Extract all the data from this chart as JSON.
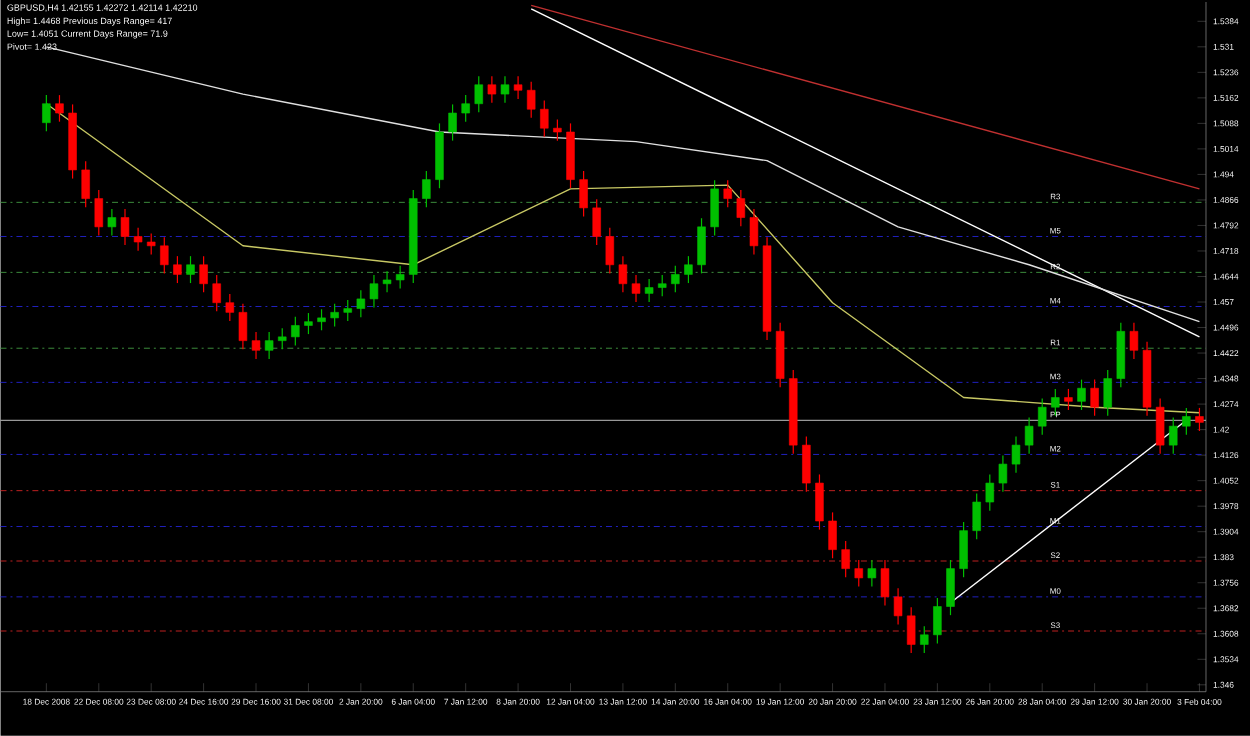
{
  "chart_data": {
    "type": "candlestick",
    "title": "GBPUSD,H4 1.42155 1.42272 1.42114 1.42210",
    "annotations": [
      "High= 1.4468    Previous Days Range= 417",
      "Low= 1.4051    Current Days Range= 71.9",
      "Pivot= 1.423"
    ],
    "colors": [
      "#00c000",
      "#ff0000",
      "#ff0000",
      "#ff0000",
      "#ff0000",
      "#00c000",
      "#ff0000",
      "#ff0000",
      "#ff0000",
      "#ff0000",
      "#ff0000",
      "#00c000",
      "#ff0000",
      "#ff0000",
      "#ff0000",
      "#ff0000",
      "#ff0000",
      "#00c000",
      "#00c000",
      "#00c000",
      "#00c000",
      "#00c000",
      "#00c000",
      "#00c000",
      "#00c000",
      "#00c000",
      "#00c000",
      "#00c000",
      "#00c000",
      "#00c000",
      "#00c000",
      "#00c000",
      "#00c000",
      "#00c000",
      "#ff0000",
      "#00c000",
      "#ff0000",
      "#ff0000",
      "#ff0000",
      "#ff0000",
      "#ff0000",
      "#ff0000",
      "#ff0000",
      "#ff0000",
      "#ff0000",
      "#ff0000",
      "#00c000",
      "#00c000",
      "#00c000",
      "#00c000",
      "#00c000",
      "#00c000",
      "#ff0000",
      "#ff0000",
      "#ff0000",
      "#ff0000",
      "#ff0000",
      "#ff0000",
      "#ff0000",
      "#ff0000",
      "#ff0000",
      "#ff0000",
      "#ff0000",
      "#00c000",
      "#ff0000",
      "#ff0000",
      "#ff0000",
      "#00c000",
      "#00c000",
      "#00c000",
      "#00c000",
      "#00c000",
      "#00c000",
      "#00c000",
      "#00c000",
      "#00c000",
      "#00c000",
      "#00c000",
      "#ff0000",
      "#00c000",
      "#ff0000",
      "#00c000",
      "#00c000",
      "#ff0000",
      "#ff0000",
      "#ff0000",
      "#00c000",
      "#00c000",
      "#ff0000"
    ],
    "categories": [
      "18 Dec 2008",
      null,
      null,
      null,
      "22 Dec 08:00",
      null,
      null,
      null,
      "23 Dec 08:00",
      null,
      null,
      null,
      "24 Dec 16:00",
      null,
      null,
      null,
      "29 Dec 16:00",
      null,
      null,
      null,
      "31 Dec 08:00",
      null,
      null,
      null,
      "2 Jan 20:00",
      null,
      null,
      null,
      "6 Jan 04:00",
      null,
      null,
      null,
      "7 Jan 12:00",
      null,
      null,
      null,
      "8 Jan 20:00",
      null,
      null,
      null,
      "12 Jan 04:00",
      null,
      null,
      null,
      "13 Jan 12:00",
      null,
      null,
      null,
      "14 Jan 20:00",
      null,
      null,
      null,
      "16 Jan 04:00",
      null,
      null,
      null,
      "19 Jan 12:00",
      null,
      null,
      null,
      "20 Jan 20:00",
      null,
      null,
      null,
      "22 Jan 04:00",
      null,
      null,
      null,
      "23 Jan 12:00",
      null,
      null,
      null,
      "26 Jan 20:00",
      null,
      null,
      null,
      "28 Jan 04:00",
      null,
      null,
      null,
      "29 Jan 12:00",
      null,
      null,
      null,
      "30 Jan 20:00",
      null,
      null,
      null,
      "3 Feb 04:00"
    ],
    "ohlc": [
      [
        1.509,
        1.517,
        1.5065,
        1.5145
      ],
      [
        1.5145,
        1.517,
        1.5093,
        1.5118
      ],
      [
        1.5118,
        1.5143,
        1.4928,
        1.4953
      ],
      [
        1.4953,
        1.4978,
        1.4845,
        1.487
      ],
      [
        1.487,
        1.4895,
        1.4763,
        1.4788
      ],
      [
        1.4788,
        1.484,
        1.4763,
        1.4815
      ],
      [
        1.4815,
        1.484,
        1.4735,
        1.476
      ],
      [
        1.476,
        1.4785,
        1.4719,
        1.4744
      ],
      [
        1.4744,
        1.4769,
        1.4708,
        1.4733
      ],
      [
        1.4733,
        1.4758,
        1.4653,
        1.4678
      ],
      [
        1.4678,
        1.4703,
        1.4625,
        1.465
      ],
      [
        1.465,
        1.4703,
        1.4625,
        1.4678
      ],
      [
        1.4678,
        1.4703,
        1.4598,
        1.4623
      ],
      [
        1.4623,
        1.4648,
        1.4543,
        1.4568
      ],
      [
        1.4568,
        1.4593,
        1.4515,
        1.454
      ],
      [
        1.454,
        1.4565,
        1.4433,
        1.4458
      ],
      [
        1.4458,
        1.4483,
        1.4405,
        1.443
      ],
      [
        1.443,
        1.4483,
        1.4405,
        1.4458
      ],
      [
        1.4458,
        1.4494,
        1.4433,
        1.4469
      ],
      [
        1.4469,
        1.4527,
        1.4444,
        1.4502
      ],
      [
        1.4502,
        1.4538,
        1.4477,
        1.4513
      ],
      [
        1.4513,
        1.4549,
        1.4488,
        1.4524
      ],
      [
        1.4524,
        1.4565,
        1.4499,
        1.454
      ],
      [
        1.454,
        1.4576,
        1.4515,
        1.4551
      ],
      [
        1.4551,
        1.4604,
        1.4526,
        1.4579
      ],
      [
        1.4579,
        1.4648,
        1.4554,
        1.4623
      ],
      [
        1.4623,
        1.4659,
        1.4598,
        1.4634
      ],
      [
        1.4634,
        1.4675,
        1.4609,
        1.465
      ],
      [
        1.465,
        1.4895,
        1.4625,
        1.487
      ],
      [
        1.487,
        1.495,
        1.4845,
        1.4925
      ],
      [
        1.4925,
        1.5088,
        1.49,
        1.5063
      ],
      [
        1.5063,
        1.5143,
        1.5038,
        1.5118
      ],
      [
        1.5118,
        1.517,
        1.5093,
        1.5145
      ],
      [
        1.5145,
        1.5225,
        1.512,
        1.52
      ],
      [
        1.52,
        1.5225,
        1.5148,
        1.5173
      ],
      [
        1.5173,
        1.5225,
        1.5148,
        1.52
      ],
      [
        1.52,
        1.5225,
        1.5159,
        1.5184
      ],
      [
        1.5184,
        1.5209,
        1.5104,
        1.5129
      ],
      [
        1.5129,
        1.5154,
        1.5049,
        1.5074
      ],
      [
        1.5074,
        1.5099,
        1.5038,
        1.5063
      ],
      [
        1.5063,
        1.5088,
        1.49,
        1.4925
      ],
      [
        1.4925,
        1.495,
        1.4818,
        1.4843
      ],
      [
        1.4843,
        1.4868,
        1.4735,
        1.476
      ],
      [
        1.476,
        1.4785,
        1.4653,
        1.4678
      ],
      [
        1.4678,
        1.4703,
        1.4598,
        1.4623
      ],
      [
        1.4623,
        1.4648,
        1.457,
        1.4595
      ],
      [
        1.4595,
        1.4637,
        1.457,
        1.4612
      ],
      [
        1.4612,
        1.4648,
        1.4587,
        1.4623
      ],
      [
        1.4623,
        1.4675,
        1.4598,
        1.465
      ],
      [
        1.465,
        1.4703,
        1.4625,
        1.4678
      ],
      [
        1.4678,
        1.4813,
        1.4653,
        1.4788
      ],
      [
        1.4788,
        1.4923,
        1.4763,
        1.4898
      ],
      [
        1.4898,
        1.4923,
        1.4845,
        1.487
      ],
      [
        1.487,
        1.4895,
        1.479,
        1.4815
      ],
      [
        1.4815,
        1.484,
        1.4708,
        1.4733
      ],
      [
        1.4733,
        1.4758,
        1.446,
        1.4485
      ],
      [
        1.4485,
        1.451,
        1.4323,
        1.4348
      ],
      [
        1.4348,
        1.4373,
        1.413,
        1.4155
      ],
      [
        1.4155,
        1.418,
        1.402,
        1.4045
      ],
      [
        1.4045,
        1.407,
        1.391,
        1.3935
      ],
      [
        1.3935,
        1.396,
        1.3827,
        1.3852
      ],
      [
        1.3852,
        1.3877,
        1.3772,
        1.3797
      ],
      [
        1.3797,
        1.3822,
        1.3745,
        1.377
      ],
      [
        1.377,
        1.3822,
        1.3745,
        1.3797
      ],
      [
        1.3797,
        1.3822,
        1.369,
        1.3715
      ],
      [
        1.3715,
        1.374,
        1.3635,
        1.366
      ],
      [
        1.366,
        1.3685,
        1.3552,
        1.3577
      ],
      [
        1.3577,
        1.363,
        1.3552,
        1.3605
      ],
      [
        1.3605,
        1.3712,
        1.358,
        1.3687
      ],
      [
        1.3687,
        1.3822,
        1.3662,
        1.3797
      ],
      [
        1.3797,
        1.3932,
        1.3772,
        1.3907
      ],
      [
        1.3907,
        1.4015,
        1.3882,
        1.399
      ],
      [
        1.399,
        1.407,
        1.3965,
        1.4045
      ],
      [
        1.4045,
        1.4125,
        1.402,
        1.41
      ],
      [
        1.41,
        1.418,
        1.4075,
        1.4155
      ],
      [
        1.4155,
        1.4235,
        1.413,
        1.421
      ],
      [
        1.421,
        1.429,
        1.4185,
        1.4265
      ],
      [
        1.4265,
        1.4318,
        1.424,
        1.4293
      ],
      [
        1.4293,
        1.4318,
        1.4257,
        1.4282
      ],
      [
        1.4282,
        1.4345,
        1.4257,
        1.432
      ],
      [
        1.432,
        1.4345,
        1.424,
        1.4265
      ],
      [
        1.4265,
        1.4373,
        1.424,
        1.4348
      ],
      [
        1.4348,
        1.451,
        1.4323,
        1.4485
      ],
      [
        1.4485,
        1.451,
        1.4405,
        1.443
      ],
      [
        1.443,
        1.4455,
        1.424,
        1.4265
      ],
      [
        1.4265,
        1.429,
        1.413,
        1.4155
      ],
      [
        1.4155,
        1.4235,
        1.413,
        1.421
      ],
      [
        1.421,
        1.4263,
        1.4185,
        1.4238
      ],
      [
        1.4238,
        1.4263,
        1.4196,
        1.4221
      ]
    ],
    "series": [
      {
        "type": "line",
        "color": "#c03030",
        "values": [
          null,
          null,
          null,
          null,
          null,
          null,
          null,
          null,
          null,
          null,
          null,
          null,
          null,
          null,
          null,
          null,
          null,
          null,
          null,
          null,
          null,
          null,
          null,
          null,
          null,
          null,
          null,
          null,
          null,
          null,
          null,
          null,
          null,
          null,
          null,
          null,
          null,
          1.543,
          null,
          null,
          null,
          null,
          null,
          null,
          null,
          null,
          null,
          null,
          null,
          null,
          null,
          null,
          null,
          null,
          null,
          null,
          null,
          null,
          null,
          null,
          null,
          null,
          null,
          null,
          null,
          null,
          null,
          null,
          null,
          null,
          null,
          null,
          null,
          null,
          null,
          null,
          null,
          null,
          null,
          null,
          null,
          null,
          null,
          null,
          null,
          null,
          null,
          null,
          1.4898
        ]
      },
      {
        "type": "line",
        "color": "#ffffff",
        "values": [
          null,
          null,
          null,
          null,
          null,
          null,
          null,
          null,
          null,
          null,
          null,
          null,
          null,
          null,
          null,
          null,
          null,
          null,
          null,
          null,
          null,
          null,
          null,
          null,
          null,
          null,
          null,
          null,
          null,
          null,
          null,
          null,
          null,
          null,
          null,
          null,
          null,
          1.542,
          null,
          null,
          null,
          null,
          null,
          null,
          null,
          null,
          null,
          null,
          null,
          null,
          null,
          null,
          null,
          null,
          null,
          null,
          null,
          null,
          null,
          null,
          null,
          null,
          null,
          null,
          null,
          null,
          null,
          null,
          null,
          null,
          null,
          null,
          null,
          null,
          null,
          null,
          null,
          null,
          null,
          null,
          null,
          null,
          null,
          null,
          null,
          null,
          null,
          null,
          1.4469
        ]
      },
      {
        "type": "line",
        "color": "#ffffff",
        "values": [
          null,
          null,
          null,
          null,
          null,
          null,
          null,
          null,
          null,
          null,
          null,
          null,
          null,
          null,
          null,
          null,
          null,
          null,
          null,
          null,
          null,
          null,
          null,
          null,
          null,
          null,
          null,
          null,
          null,
          null,
          null,
          null,
          null,
          null,
          null,
          null,
          null,
          null,
          null,
          null,
          null,
          null,
          null,
          null,
          null,
          null,
          null,
          null,
          null,
          null,
          null,
          null,
          null,
          null,
          null,
          null,
          null,
          null,
          null,
          null,
          null,
          null,
          null,
          null,
          null,
          null,
          null,
          null,
          null,
          1.3698,
          null,
          null,
          null,
          null,
          null,
          null,
          null,
          null,
          null,
          null,
          null,
          null,
          null,
          null,
          null,
          null,
          null,
          1.4227,
          null
        ]
      },
      {
        "type": "line",
        "color": "#e0e0e0",
        "values": [
          1.531,
          null,
          null,
          null,
          null,
          null,
          null,
          null,
          null,
          null,
          null,
          null,
          null,
          null,
          null,
          1.5173,
          null,
          null,
          null,
          null,
          null,
          null,
          null,
          null,
          null,
          null,
          null,
          null,
          null,
          null,
          1.5063,
          null,
          null,
          null,
          null,
          null,
          null,
          null,
          null,
          null,
          null,
          null,
          null,
          null,
          null,
          1.5035,
          null,
          null,
          null,
          null,
          null,
          null,
          null,
          null,
          null,
          1.498,
          null,
          null,
          null,
          null,
          null,
          null,
          null,
          null,
          null,
          1.4788,
          null,
          null,
          null,
          null,
          null,
          null,
          null,
          null,
          null,
          1.4678,
          null,
          null,
          null,
          null,
          null,
          null,
          null,
          null,
          null,
          null,
          null,
          null,
          1.4513
        ]
      },
      {
        "type": "line",
        "color": "#c8c864",
        "values": [
          1.5145,
          null,
          null,
          null,
          null,
          null,
          null,
          null,
          null,
          null,
          null,
          null,
          null,
          null,
          null,
          1.4733,
          null,
          null,
          null,
          null,
          null,
          null,
          null,
          null,
          null,
          null,
          null,
          null,
          1.4678,
          null,
          null,
          null,
          null,
          null,
          null,
          null,
          null,
          null,
          null,
          null,
          1.4898,
          null,
          null,
          null,
          null,
          null,
          null,
          null,
          null,
          null,
          null,
          null,
          1.4909,
          null,
          null,
          null,
          null,
          null,
          null,
          null,
          1.4568,
          null,
          null,
          null,
          null,
          null,
          null,
          null,
          null,
          null,
          1.4293,
          null,
          null,
          null,
          null,
          null,
          null,
          null,
          null,
          null,
          1.4265,
          null,
          null,
          null,
          null,
          null,
          null,
          null,
          1.4249
        ]
      }
    ],
    "ref_lines": [
      {
        "axis": "y",
        "value": 1.4859,
        "label": "R3",
        "color": "#3c8c3c",
        "line_style": "dashed"
      },
      {
        "axis": "y",
        "value": 1.476,
        "label": "M5",
        "color": "#2020c0",
        "line_style": "dashed"
      },
      {
        "axis": "y",
        "value": 1.4656,
        "label": "R2",
        "color": "#3c8c3c",
        "line_style": "dashed"
      },
      {
        "axis": "y",
        "value": 1.4557,
        "label": "M4",
        "color": "#2020c0",
        "line_style": "dashed"
      },
      {
        "axis": "y",
        "value": 1.4436,
        "label": "R1",
        "color": "#3c8c3c",
        "line_style": "dashed"
      },
      {
        "axis": "y",
        "value": 1.4337,
        "label": "M3",
        "color": "#2020c0",
        "line_style": "dashed"
      },
      {
        "axis": "y",
        "value": 1.4227,
        "label": "PP",
        "color": "#c0c0c0",
        "line_style": "solid"
      },
      {
        "axis": "y",
        "value": 1.4128,
        "label": "M2",
        "color": "#2020c0",
        "line_style": "dashed"
      },
      {
        "axis": "y",
        "value": 1.4023,
        "label": "S1",
        "color": "#c02020",
        "line_style": "dashed"
      },
      {
        "axis": "y",
        "value": 1.3919,
        "label": "M1",
        "color": "#2020c0",
        "line_style": "dashed"
      },
      {
        "axis": "y",
        "value": 1.3819,
        "label": "S2",
        "color": "#c02020",
        "line_style": "dashed"
      },
      {
        "axis": "y",
        "value": 1.3715,
        "label": "M0",
        "color": "#2020c0",
        "line_style": "dashed"
      },
      {
        "axis": "y",
        "value": 1.3616,
        "label": "S3",
        "color": "#c02020",
        "line_style": "dashed"
      }
    ],
    "ylim": [
      1.344,
      1.544
    ],
    "yticks": [
      1.346,
      1.3534,
      1.3608,
      1.3682,
      1.3756,
      1.383,
      1.3904,
      1.3978,
      1.4052,
      1.4126,
      1.42,
      1.4274,
      1.4348,
      1.4422,
      1.4496,
      1.457,
      1.4644,
      1.4718,
      1.4792,
      1.4866,
      1.494,
      1.5014,
      1.5088,
      1.5162,
      1.5236,
      1.531,
      1.5384
    ]
  }
}
